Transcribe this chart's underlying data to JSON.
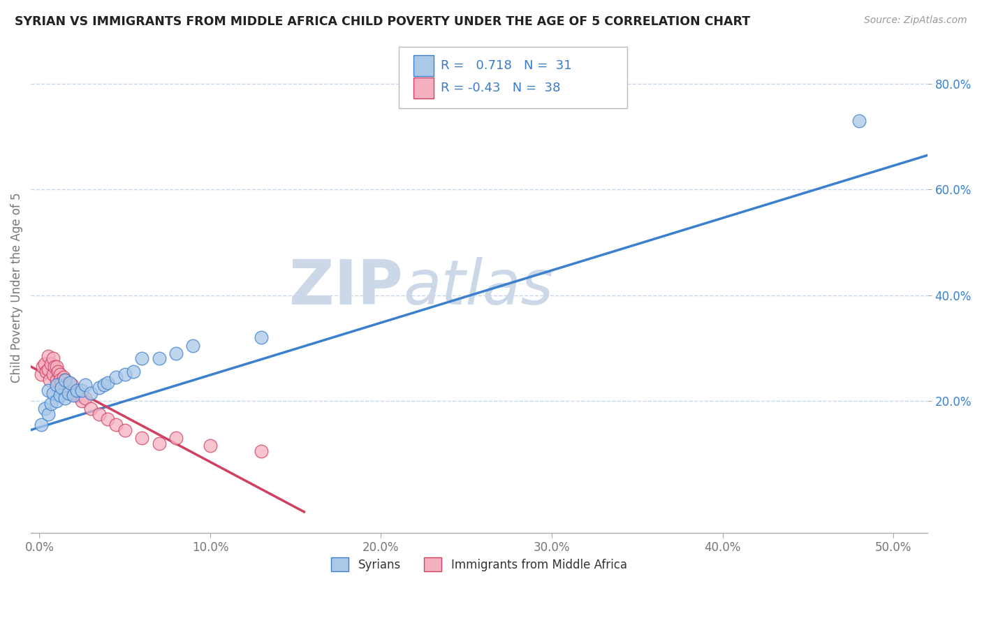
{
  "title": "SYRIAN VS IMMIGRANTS FROM MIDDLE AFRICA CHILD POVERTY UNDER THE AGE OF 5 CORRELATION CHART",
  "source": "Source: ZipAtlas.com",
  "xlabel_ticks": [
    "0.0%",
    "10.0%",
    "20.0%",
    "30.0%",
    "40.0%",
    "50.0%"
  ],
  "xlabel_values": [
    0.0,
    0.1,
    0.2,
    0.3,
    0.4,
    0.5
  ],
  "ylabel": "Child Poverty Under the Age of 5",
  "ylabel_ticks": [
    "20.0%",
    "40.0%",
    "60.0%",
    "80.0%"
  ],
  "ylabel_values": [
    0.2,
    0.4,
    0.6,
    0.8
  ],
  "xlim": [
    -0.005,
    0.52
  ],
  "ylim": [
    -0.05,
    0.88
  ],
  "blue_R": 0.718,
  "blue_N": 31,
  "pink_R": -0.43,
  "pink_N": 38,
  "blue_color": "#aac8e8",
  "pink_color": "#f5b0c0",
  "blue_line_color": "#3a80cc",
  "pink_line_color": "#d04060",
  "watermark_zip": "ZIP",
  "watermark_atlas": "atlas",
  "watermark_color": "#ccd8e8",
  "legend_text_color": "#3a7cc8",
  "background_color": "#ffffff",
  "grid_color": "#c8d8e8",
  "blue_scatter_x": [
    0.001,
    0.003,
    0.005,
    0.005,
    0.007,
    0.008,
    0.01,
    0.01,
    0.012,
    0.013,
    0.015,
    0.015,
    0.017,
    0.018,
    0.02,
    0.022,
    0.025,
    0.027,
    0.03,
    0.035,
    0.038,
    0.04,
    0.045,
    0.05,
    0.055,
    0.06,
    0.07,
    0.08,
    0.09,
    0.13,
    0.48
  ],
  "blue_scatter_y": [
    0.155,
    0.185,
    0.175,
    0.22,
    0.195,
    0.215,
    0.2,
    0.23,
    0.21,
    0.225,
    0.205,
    0.24,
    0.215,
    0.235,
    0.21,
    0.22,
    0.22,
    0.23,
    0.215,
    0.225,
    0.23,
    0.235,
    0.245,
    0.25,
    0.255,
    0.28,
    0.28,
    0.29,
    0.305,
    0.32,
    0.73
  ],
  "pink_scatter_x": [
    0.001,
    0.002,
    0.003,
    0.004,
    0.005,
    0.005,
    0.006,
    0.007,
    0.008,
    0.008,
    0.009,
    0.01,
    0.01,
    0.011,
    0.012,
    0.012,
    0.013,
    0.014,
    0.015,
    0.015,
    0.016,
    0.017,
    0.018,
    0.019,
    0.02,
    0.022,
    0.025,
    0.027,
    0.03,
    0.035,
    0.04,
    0.045,
    0.05,
    0.06,
    0.07,
    0.08,
    0.1,
    0.13
  ],
  "pink_scatter_y": [
    0.25,
    0.265,
    0.27,
    0.255,
    0.26,
    0.285,
    0.24,
    0.27,
    0.25,
    0.28,
    0.265,
    0.24,
    0.265,
    0.255,
    0.25,
    0.24,
    0.235,
    0.245,
    0.23,
    0.24,
    0.225,
    0.235,
    0.22,
    0.23,
    0.215,
    0.21,
    0.2,
    0.205,
    0.185,
    0.175,
    0.165,
    0.155,
    0.145,
    0.13,
    0.12,
    0.13,
    0.115,
    0.105
  ],
  "blue_line_x0": -0.005,
  "blue_line_x1": 0.52,
  "blue_line_y0": 0.145,
  "blue_line_y1": 0.665,
  "pink_line_x0": -0.005,
  "pink_line_x1": 0.155,
  "pink_line_y0": 0.265,
  "pink_line_y1": -0.01
}
